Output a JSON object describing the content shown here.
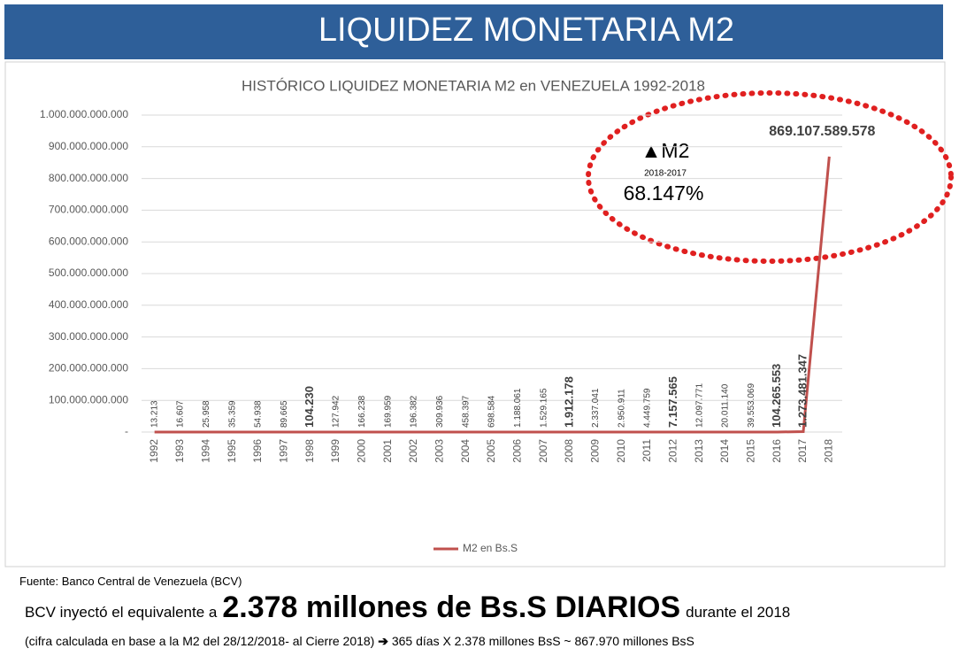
{
  "header": {
    "title": "LIQUIDEZ MONETARIA M2"
  },
  "chart_data": {
    "type": "line",
    "title": "HISTÓRICO LIQUIDEZ MONETARIA M2 en VENEZUELA 1992-2018",
    "categories": [
      "1992",
      "1993",
      "1994",
      "1995",
      "1996",
      "1997",
      "1998",
      "1999",
      "2000",
      "2001",
      "2002",
      "2003",
      "2004",
      "2005",
      "2006",
      "2007",
      "2008",
      "2009",
      "2010",
      "2011",
      "2012",
      "2013",
      "2014",
      "2015",
      "2016",
      "2017",
      "2018"
    ],
    "series": [
      {
        "name": "M2 en Bs.S",
        "color": "#c0504d",
        "values": [
          13213,
          16607,
          25958,
          35359,
          54938,
          89665,
          104230,
          127942,
          166238,
          169959,
          196382,
          309936,
          458397,
          698584,
          1188061,
          1529165,
          1912178,
          2337041,
          2950911,
          4449759,
          7157565,
          12097771,
          20011140,
          39553069,
          104265553,
          1273481347,
          869107589578
        ],
        "value_labels": [
          "13.213",
          "16.607",
          "25.958",
          "35.359",
          "54.938",
          "89.665",
          "104.230",
          "127.942",
          "166.238",
          "169.959",
          "196.382",
          "309.936",
          "458.397",
          "698.584",
          "1.188.061",
          "1.529.165",
          "1.912.178",
          "2.337.041",
          "2.950.911",
          "4.449.759",
          "7.157.565",
          "12.097.771",
          "20.011.140",
          "39.553.069",
          "104.265.553",
          "1.273.481.347",
          "869.107.589.578"
        ]
      }
    ],
    "ylim": [
      0,
      1000000000000
    ],
    "yticks": [
      {
        "value": 0,
        "label": "-"
      },
      {
        "value": 100000000000,
        "label": "100.000.000.000"
      },
      {
        "value": 200000000000,
        "label": "200.000.000.000"
      },
      {
        "value": 300000000000,
        "label": "300.000.000.000"
      },
      {
        "value": 400000000000,
        "label": "400.000.000.000"
      },
      {
        "value": 500000000000,
        "label": "500.000.000.000"
      },
      {
        "value": 600000000000,
        "label": "600.000.000.000"
      },
      {
        "value": 700000000000,
        "label": "700.000.000.000"
      },
      {
        "value": 800000000000,
        "label": "800.000.000.000"
      },
      {
        "value": 900000000000,
        "label": "900.000.000.000"
      },
      {
        "value": 1000000000000,
        "label": "1.000.000.000.000"
      }
    ],
    "grid": true,
    "legend": "bottom",
    "annotation": {
      "title": "▲M2",
      "subtitle": "2018-2017",
      "text": "68.147%"
    }
  },
  "source": "Fuente: Banco Central de Venezuela (BCV)",
  "summary": {
    "lead": "BCV inyectó el equivalente a",
    "highlight": "2.378 millones de Bs.S DIARIOS",
    "tail": "durante el 2018"
  },
  "footnote": {
    "text": "(cifra calculada en base a la M2 del 28/12/2018- al Cierre 2018)",
    "arrow": "➔",
    "calc": "365 días X 2.378 millones BsS ~ 867.970 millones BsS"
  }
}
